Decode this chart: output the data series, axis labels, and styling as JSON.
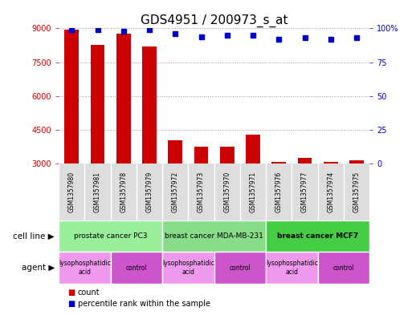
{
  "title": "GDS4951 / 200973_s_at",
  "samples": [
    "GSM1357980",
    "GSM1357981",
    "GSM1357978",
    "GSM1357979",
    "GSM1357972",
    "GSM1357973",
    "GSM1357970",
    "GSM1357971",
    "GSM1357976",
    "GSM1357977",
    "GSM1357974",
    "GSM1357975"
  ],
  "counts": [
    8950,
    8250,
    8750,
    8200,
    4050,
    3750,
    3750,
    4300,
    3100,
    3250,
    3100,
    3150
  ],
  "percentiles": [
    99,
    99,
    98,
    99,
    96,
    94,
    95,
    95,
    92,
    93,
    92,
    93
  ],
  "ylim_left": [
    3000,
    9000
  ],
  "yticks_left": [
    3000,
    4500,
    6000,
    7500,
    9000
  ],
  "ylim_right": [
    0,
    100
  ],
  "yticks_right": [
    0,
    25,
    50,
    75,
    100
  ],
  "bar_color": "#cc0000",
  "dot_color": "#0000cc",
  "cell_line_groups": [
    {
      "label": "prostate cancer PC3",
      "start": 0,
      "end": 4,
      "color": "#99ee99"
    },
    {
      "label": "breast cancer MDA-MB-231",
      "start": 4,
      "end": 8,
      "color": "#88dd88"
    },
    {
      "label": "breast cancer MCF7",
      "start": 8,
      "end": 12,
      "color": "#44cc44"
    }
  ],
  "agent_groups": [
    {
      "label": "lysophosphatidic\nacid",
      "start": 0,
      "end": 2,
      "color": "#ee99ee"
    },
    {
      "label": "control",
      "start": 2,
      "end": 4,
      "color": "#cc55cc"
    },
    {
      "label": "lysophosphatidic\nacid",
      "start": 4,
      "end": 6,
      "color": "#ee99ee"
    },
    {
      "label": "control",
      "start": 6,
      "end": 8,
      "color": "#cc55cc"
    },
    {
      "label": "lysophosphatidic\nacid",
      "start": 8,
      "end": 10,
      "color": "#ee99ee"
    },
    {
      "label": "control",
      "start": 10,
      "end": 12,
      "color": "#cc55cc"
    }
  ],
  "xlabel_cell_line": "cell line",
  "xlabel_agent": "agent",
  "legend_count": "count",
  "legend_percentile": "percentile rank within the sample",
  "background_color": "#ffffff",
  "grid_color": "#999999",
  "title_fontsize": 11,
  "tick_fontsize": 7,
  "bar_width": 0.55
}
